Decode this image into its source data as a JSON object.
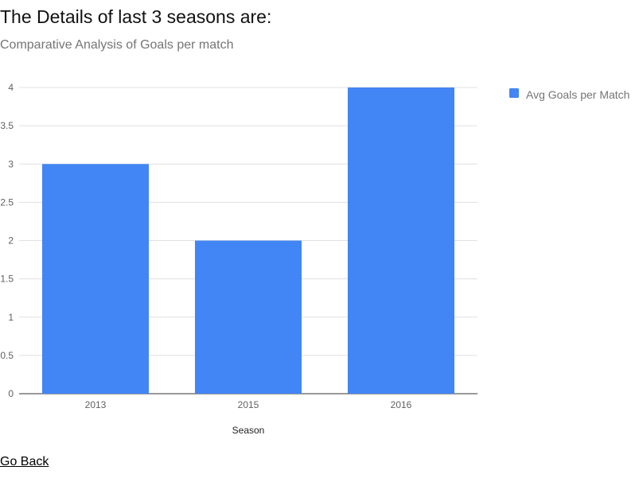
{
  "page": {
    "heading": "The Details of last 3 seasons are:",
    "back_link": "Go Back"
  },
  "chart_data": {
    "type": "bar",
    "title": "",
    "subtitle": "Comparative Analysis of Goals per match",
    "xlabel": "Season",
    "ylabel": "",
    "categories": [
      "2013",
      "2015",
      "2016"
    ],
    "series": [
      {
        "name": "Avg Goals per Match",
        "values": [
          3,
          2,
          4
        ],
        "color": "#4285f4"
      }
    ],
    "ylim": [
      0,
      4
    ],
    "yticks": [
      "0",
      "0.5",
      "1",
      "1.5",
      "2",
      "2.5",
      "3",
      "3.5",
      "4"
    ],
    "grid": true,
    "legend": "right"
  }
}
